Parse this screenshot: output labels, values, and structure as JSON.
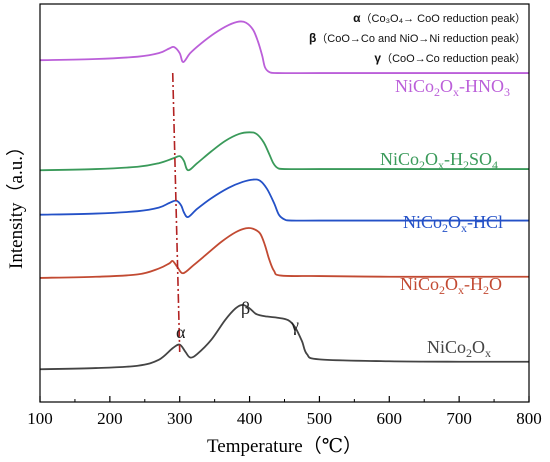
{
  "chart_data": {
    "type": "line",
    "xlabel": "Temperature（℃）",
    "ylabel": "Intensity（a.u.）",
    "xlim": [
      100,
      800
    ],
    "x_ticks": [
      "100",
      "200",
      "300",
      "400",
      "500",
      "600",
      "700",
      "800"
    ],
    "y_ticks_shown": false,
    "grid": false,
    "legend_note_lines": [
      {
        "symbol": "α",
        "text": "（Co₃O₄→ CoO reduction peak）"
      },
      {
        "symbol": "β",
        "text": "（CoO→Co and NiO→Ni reduction peak）"
      },
      {
        "symbol": "γ",
        "text": "（CoO→Co reduction peak）"
      }
    ],
    "peak_labels": {
      "alpha": "α",
      "beta": "β",
      "gamma": "γ"
    },
    "alpha_peak_guide_line": {
      "style": "dash-dot",
      "x_top": 290,
      "x_bottom": 300
    },
    "series": [
      {
        "name": "NiCo2Ox-HNO3",
        "label_parts": [
          "NiCo",
          "2",
          "O",
          "x",
          "-HNO",
          "3"
        ],
        "color": "#bb5fd9",
        "x": [
          100,
          180,
          240,
          270,
          285,
          292,
          300,
          305,
          315,
          330,
          350,
          370,
          385,
          395,
          405,
          412,
          418,
          422,
          428,
          440,
          500,
          600,
          700,
          800
        ],
        "y": [
          96,
          96.5,
          97.5,
          99,
          101,
          101.6,
          99,
          95.2,
          99,
          103,
          107.5,
          111,
          112.5,
          112,
          109,
          104,
          98,
          93,
          91,
          90.5,
          90.5,
          90.5,
          90.5,
          90.5
        ]
      },
      {
        "name": "NiCo2Ox-H2SO4",
        "label_parts": [
          "NiCo",
          "2",
          "O",
          "x",
          "-H",
          "2",
          "SO",
          "4"
        ],
        "color": "#3a9a5a",
        "x": [
          100,
          180,
          240,
          270,
          290,
          300,
          306,
          312,
          325,
          345,
          365,
          385,
          400,
          410,
          420,
          428,
          434,
          440,
          450,
          500,
          600,
          700,
          800
        ],
        "y": [
          49,
          49.5,
          50.5,
          52,
          54,
          55,
          53,
          49,
          52,
          57,
          61.5,
          64.5,
          65.2,
          64.5,
          61,
          56,
          52,
          50,
          49.5,
          49.5,
          49.5,
          49.5,
          49.5
        ]
      },
      {
        "name": "NiCo2Ox-HCl",
        "label_parts": [
          "NiCo",
          "2",
          "O",
          "x",
          "-HCl"
        ],
        "color": "#2451c7",
        "x": [
          100,
          180,
          240,
          270,
          285,
          295,
          302,
          306,
          312,
          325,
          345,
          370,
          390,
          405,
          415,
          425,
          435,
          442,
          450,
          460,
          500,
          600,
          700,
          800
        ],
        "y": [
          30,
          30.5,
          31.5,
          33,
          35,
          36,
          34,
          31,
          29,
          32.5,
          37,
          41.5,
          44,
          45,
          44.5,
          41,
          35,
          30,
          28,
          27.5,
          27.5,
          27.5,
          27.5,
          27.5
        ]
      },
      {
        "name": "NiCo2Ox-H2O",
        "label_parts": [
          "NiCo",
          "2",
          "O",
          "x",
          "-H",
          "2",
          "O"
        ],
        "color": "#c24a32",
        "x": [
          100,
          180,
          240,
          270,
          285,
          290,
          297,
          305,
          320,
          340,
          360,
          380,
          395,
          405,
          415,
          422,
          428,
          435,
          445,
          500,
          600,
          700,
          800
        ],
        "y": [
          3,
          3.5,
          4.5,
          7,
          9.2,
          10.2,
          7.5,
          5,
          8.5,
          13.5,
          18.5,
          22.5,
          24.2,
          24,
          22,
          17,
          11,
          6,
          4,
          3.8,
          3.5,
          3.5,
          3.5
        ]
      },
      {
        "name": "NiCo2Ox",
        "label_parts": [
          "NiCo",
          "2",
          "O",
          "x"
        ],
        "color": "#444444",
        "x": [
          100,
          180,
          240,
          270,
          290,
          300,
          308,
          315,
          325,
          345,
          365,
          380,
          390,
          400,
          410,
          425,
          440,
          455,
          465,
          475,
          482,
          500,
          600,
          700,
          800
        ],
        "y": [
          -36,
          -35.5,
          -34.5,
          -32,
          -27,
          -25.5,
          -28.5,
          -31,
          -29.5,
          -23.5,
          -15,
          -10,
          -8.5,
          -10,
          -12.5,
          -13.5,
          -14,
          -15,
          -18,
          -24,
          -29.5,
          -31.8,
          -32.6,
          -32.8,
          -32.8
        ]
      }
    ]
  }
}
